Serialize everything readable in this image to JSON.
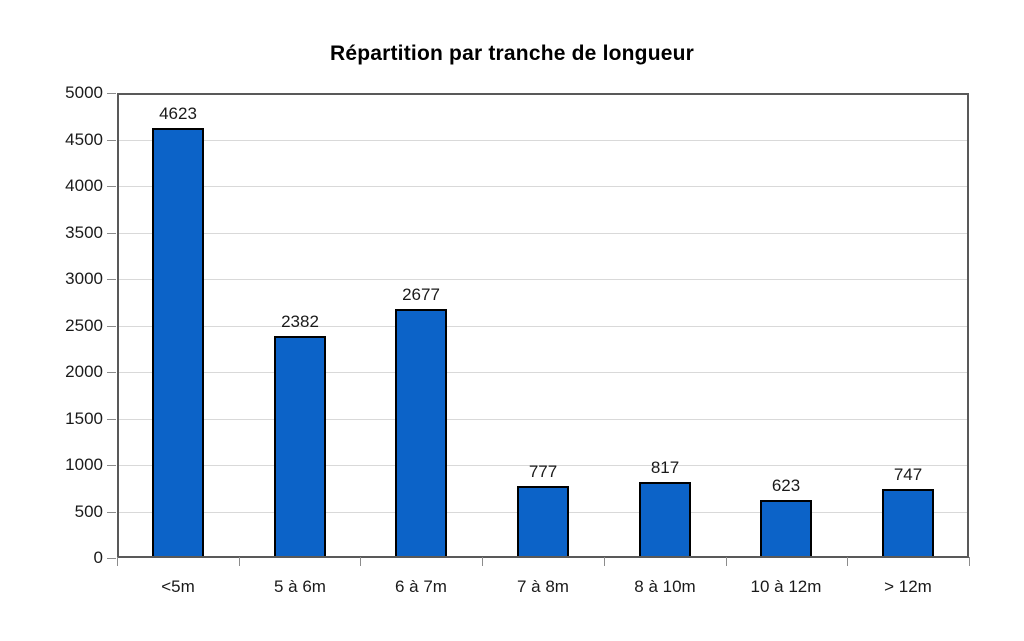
{
  "chart_data": {
    "type": "bar",
    "title": "Répartition par tranche de longueur",
    "categories": [
      "<5m",
      "5 à 6m",
      "6 à 7m",
      "7 à 8m",
      "8 à 10m",
      "10 à 12m",
      "> 12m"
    ],
    "values": [
      4623,
      2382,
      2677,
      777,
      817,
      623,
      747
    ],
    "xlabel": "",
    "ylabel": "",
    "ylim": [
      0,
      5000
    ],
    "ytick_step": 500,
    "grid": true,
    "legend_position": "none",
    "bar_color": "#0C63C8",
    "bar_border_color": "#000000",
    "gridline_color": "#d9d9d9",
    "plot_border_color": "#595959",
    "text_color": "#1a1a1a"
  }
}
